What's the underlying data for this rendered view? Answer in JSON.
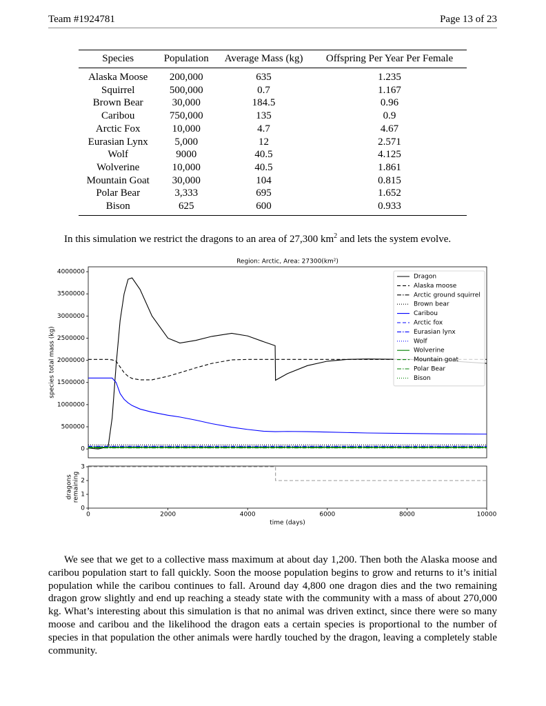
{
  "header": {
    "team": "Team #1924781",
    "page": "Page 13 of 23"
  },
  "table": {
    "columns": [
      "Species",
      "Population",
      "Average Mass (kg)",
      "Offspring Per Year Per Female"
    ],
    "rows": [
      [
        "Alaska Moose",
        "200,000",
        "635",
        "1.235"
      ],
      [
        "Squirrel",
        "500,000",
        "0.7",
        "1.167"
      ],
      [
        "Brown Bear",
        "30,000",
        "184.5",
        "0.96"
      ],
      [
        "Caribou",
        "750,000",
        "135",
        "0.9"
      ],
      [
        "Arctic Fox",
        "10,000",
        "4.7",
        "4.67"
      ],
      [
        "Eurasian Lynx",
        "5,000",
        "12",
        "2.571"
      ],
      [
        "Wolf",
        "9000",
        "40.5",
        "4.125"
      ],
      [
        "Wolverine",
        "10,000",
        "40.5",
        "1.861"
      ],
      [
        "Mountain Goat",
        "30,000",
        "104",
        "0.815"
      ],
      [
        "Polar Bear",
        "3,333",
        "695",
        "1.652"
      ],
      [
        "Bison",
        "625",
        "600",
        "0.933"
      ]
    ]
  },
  "intro": {
    "text": "In this simulation we restrict the dragons to an area of 27,300 km",
    "superscript": "2",
    "text_after": " and lets the system evolve."
  },
  "conclusion": "We see that we get to a collective mass maximum at about day 1,200. Then both the Alaska moose and caribou population start to fall quickly. Soon the moose population begins to grow and returns to it’s initial population while the caribou continues to fall. Around day 4,800 one dragon dies and the two remaining dragon grow slightly and end up reaching a steady state with the community with a mass of about 270,000 kg. What’s interesting about this simulation is that no animal was driven extinct, since there were so many moose and caribou and the likelihood the dragon eats a certain species is proportional to the number of species in that population the other animals were hardly touched by the dragon, leaving a completely stable community.",
  "chart_data": [
    {
      "type": "line",
      "title": "Region: Arctic, Area: 27300(km²)",
      "ylabel": "species total mass (kg)",
      "xlim": [
        0,
        10000
      ],
      "ylim": [
        -200000,
        4110000
      ],
      "yticks": [
        0,
        500000,
        1000000,
        1500000,
        2000000,
        2500000,
        3000000,
        3500000,
        4000000
      ],
      "legend": "upper right",
      "x": [
        0,
        250,
        500,
        600,
        700,
        800,
        900,
        1000,
        1100,
        1300,
        1600,
        2000,
        2300,
        2700,
        3100,
        3600,
        4000,
        4400,
        4690,
        4700,
        5000,
        5500,
        6000,
        6500,
        7000,
        8000,
        9000,
        10000
      ],
      "series": [
        {
          "name": "Dragon",
          "color": "#000000",
          "linestyle": "solid",
          "values": [
            20000,
            0,
            50000,
            700000,
            1900000,
            2900000,
            3500000,
            3830000,
            3860000,
            3600000,
            3000000,
            2500000,
            2390000,
            2450000,
            2540000,
            2610000,
            2550000,
            2420000,
            2330000,
            1550000,
            1700000,
            1880000,
            1980000,
            2020000,
            2030000,
            2020000,
            1990000,
            1930000
          ]
        },
        {
          "name": "Alaska moose",
          "color": "#000000",
          "linestyle": "dashed",
          "values": [
            2020000,
            2020000,
            2020000,
            2010000,
            1980000,
            1850000,
            1720000,
            1640000,
            1590000,
            1560000,
            1560000,
            1640000,
            1720000,
            1830000,
            1930000,
            2010000,
            2020000,
            2020000,
            2020000,
            2020000,
            2020000,
            2020000,
            2020000,
            2020000,
            2020000,
            2020000,
            2020000,
            2020000
          ]
        },
        {
          "name": "Arctic ground squirrel",
          "color": "#000000",
          "linestyle": "dashdot",
          "x": [
            0,
            10000
          ],
          "values": [
            35000,
            35000
          ]
        },
        {
          "name": "Brown bear",
          "color": "#000000",
          "linestyle": "dotted",
          "x": [
            0,
            10000
          ],
          "values": [
            90000,
            90000
          ]
        },
        {
          "name": "Caribou",
          "color": "#0000ff",
          "linestyle": "solid",
          "values": [
            1600000,
            1600000,
            1600000,
            1600000,
            1500000,
            1250000,
            1120000,
            1040000,
            980000,
            900000,
            830000,
            760000,
            720000,
            650000,
            570000,
            490000,
            440000,
            400000,
            390000,
            390000,
            395000,
            390000,
            380000,
            370000,
            360000,
            350000,
            340000,
            335000
          ]
        },
        {
          "name": "Arctic fox",
          "color": "#0000ff",
          "linestyle": "dashed",
          "x": [
            0,
            10000
          ],
          "values": [
            47000,
            47000
          ]
        },
        {
          "name": "Eurasian lynx",
          "color": "#0000ff",
          "linestyle": "dashdot",
          "x": [
            0,
            10000
          ],
          "values": [
            60000,
            60000
          ]
        },
        {
          "name": "Wolf",
          "color": "#0000ff",
          "linestyle": "dotted",
          "x": [
            0,
            10000
          ],
          "values": [
            36000,
            36000
          ]
        },
        {
          "name": "Wolverine",
          "color": "#008000",
          "linestyle": "solid",
          "x": [
            0,
            10000
          ],
          "values": [
            40000,
            40000
          ]
        },
        {
          "name": "Mountain goat",
          "color": "#008000",
          "linestyle": "dashed",
          "x": [
            0,
            10000
          ],
          "values": [
            31000,
            31000
          ]
        },
        {
          "name": "Polar Bear",
          "color": "#008000",
          "linestyle": "dashdot",
          "x": [
            0,
            10000
          ],
          "values": [
            23000,
            23000
          ]
        },
        {
          "name": "Bison",
          "color": "#008000",
          "linestyle": "dotted",
          "x": [
            0,
            10000
          ],
          "values": [
            37000,
            37000
          ]
        }
      ]
    },
    {
      "type": "line",
      "ylabel": [
        "dragons",
        "remaining"
      ],
      "xlabel": "time (days)",
      "xlim": [
        0,
        10000
      ],
      "ylim": [
        0,
        3.05
      ],
      "yticks": [
        0,
        1,
        2,
        3
      ],
      "xticks": [
        0,
        2000,
        4000,
        6000,
        8000,
        10000
      ],
      "series": [
        {
          "color": "#999999",
          "linestyle": "dashed",
          "x": [
            0,
            4700,
            4700,
            10000
          ],
          "values": [
            3,
            3,
            2,
            2
          ]
        }
      ]
    }
  ]
}
